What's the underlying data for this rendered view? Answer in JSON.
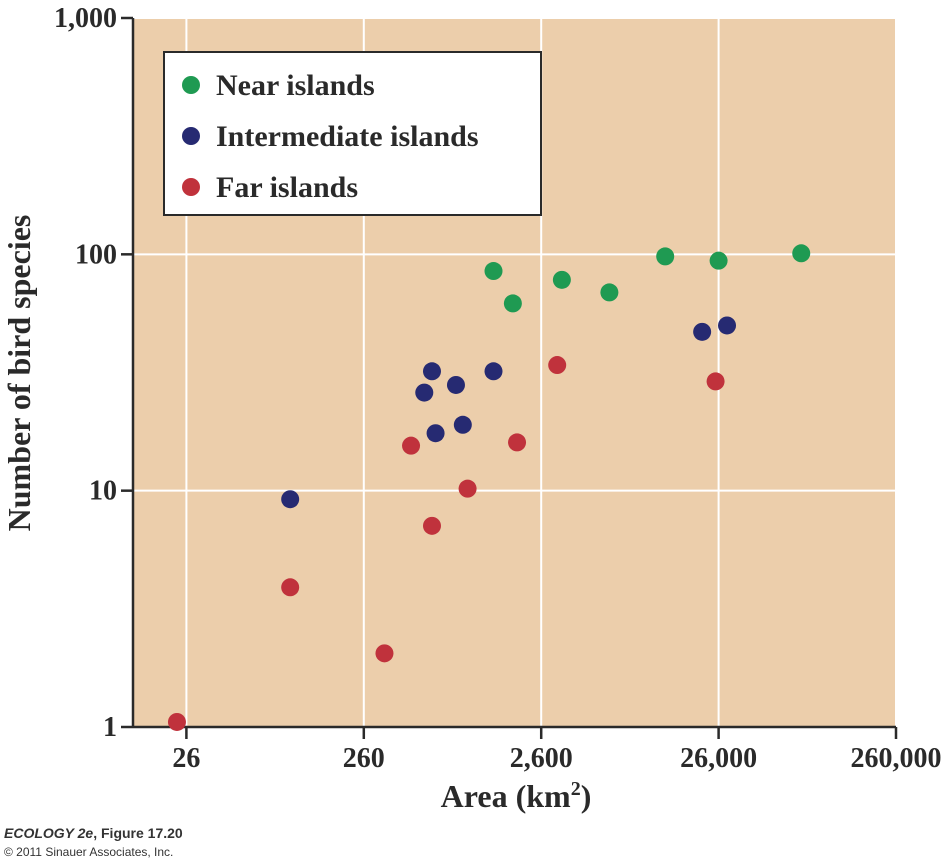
{
  "chart_data": {
    "type": "scatter",
    "xlabel": "Area (km",
    "xlabel_sup": "2",
    "xlabel_close": ")",
    "ylabel": "Number of bird species",
    "x_scale": "log",
    "y_scale": "log",
    "xlim": [
      13,
      260000
    ],
    "ylim": [
      1,
      1000
    ],
    "x_ticks": [
      {
        "value": 26,
        "label": "26"
      },
      {
        "value": 260,
        "label": "260"
      },
      {
        "value": 2600,
        "label": "2,600"
      },
      {
        "value": 26000,
        "label": "26,000"
      },
      {
        "value": 260000,
        "label": "260,000"
      }
    ],
    "y_ticks": [
      {
        "value": 1,
        "label": "1"
      },
      {
        "value": 10,
        "label": "10"
      },
      {
        "value": 100,
        "label": "100"
      },
      {
        "value": 1000,
        "label": "1,000"
      }
    ],
    "grid": true,
    "legend_position": "top-left",
    "series": [
      {
        "name": "Near islands",
        "color": "#1f9a52",
        "points": [
          {
            "x": 1400,
            "y": 85
          },
          {
            "x": 1800,
            "y": 62
          },
          {
            "x": 3400,
            "y": 78
          },
          {
            "x": 6300,
            "y": 69
          },
          {
            "x": 13000,
            "y": 98
          },
          {
            "x": 26000,
            "y": 94
          },
          {
            "x": 76000,
            "y": 101
          }
        ]
      },
      {
        "name": "Intermediate islands",
        "color": "#262a72",
        "points": [
          {
            "x": 100,
            "y": 9.2
          },
          {
            "x": 570,
            "y": 26
          },
          {
            "x": 630,
            "y": 32
          },
          {
            "x": 660,
            "y": 17.5
          },
          {
            "x": 860,
            "y": 28
          },
          {
            "x": 940,
            "y": 19
          },
          {
            "x": 1400,
            "y": 32
          },
          {
            "x": 21000,
            "y": 47
          },
          {
            "x": 29000,
            "y": 50
          }
        ]
      },
      {
        "name": "Far islands",
        "color": "#c0323c",
        "points": [
          {
            "x": 23,
            "y": 1.05
          },
          {
            "x": 100,
            "y": 3.9
          },
          {
            "x": 340,
            "y": 2.05
          },
          {
            "x": 480,
            "y": 15.5
          },
          {
            "x": 630,
            "y": 7.1
          },
          {
            "x": 1000,
            "y": 10.2
          },
          {
            "x": 1900,
            "y": 16
          },
          {
            "x": 3200,
            "y": 34
          },
          {
            "x": 25000,
            "y": 29
          }
        ]
      }
    ]
  },
  "style": {
    "plot_background": "#ecceab",
    "grid_color": "#ffffff",
    "axis_color": "#2a2a2a"
  },
  "caption": {
    "title_italic": "ECOLOGY 2e",
    "title_rest": ", Figure 17.20",
    "copyright": "© 2011 Sinauer Associates, Inc."
  }
}
